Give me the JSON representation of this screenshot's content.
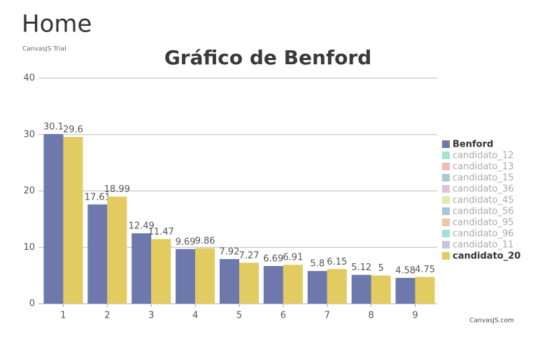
{
  "header": {
    "title": "Home",
    "trial": "CanvasJS Trial"
  },
  "chart_data": {
    "type": "bar",
    "title": "Gráfico de Benford",
    "categories": [
      "1",
      "2",
      "3",
      "4",
      "5",
      "6",
      "7",
      "8",
      "9"
    ],
    "series": [
      {
        "name": "Benford",
        "color": "#6d78ad",
        "visible": true,
        "values": [
          30.1,
          17.61,
          12.49,
          9.69,
          7.92,
          6.69,
          5.8,
          5.12,
          4.58
        ]
      },
      {
        "name": "candidato_12",
        "color": "#a3e4cc",
        "visible": false,
        "values": [
          null,
          null,
          null,
          null,
          null,
          null,
          null,
          null,
          null
        ]
      },
      {
        "name": "candidato_13",
        "color": "#f0bcb4",
        "visible": false,
        "values": [
          null,
          null,
          null,
          null,
          null,
          null,
          null,
          null,
          null
        ]
      },
      {
        "name": "candidato_15",
        "color": "#a9ccd4",
        "visible": false,
        "values": [
          null,
          null,
          null,
          null,
          null,
          null,
          null,
          null,
          null
        ]
      },
      {
        "name": "candidato_36",
        "color": "#dcc2da",
        "visible": false,
        "values": [
          null,
          null,
          null,
          null,
          null,
          null,
          null,
          null,
          null
        ]
      },
      {
        "name": "candidato_45",
        "color": "#e2e9b2",
        "visible": false,
        "values": [
          null,
          null,
          null,
          null,
          null,
          null,
          null,
          null,
          null
        ]
      },
      {
        "name": "candidato_56",
        "color": "#a8c6d8",
        "visible": false,
        "values": [
          null,
          null,
          null,
          null,
          null,
          null,
          null,
          null,
          null
        ]
      },
      {
        "name": "candidato_95",
        "color": "#f0c6a4",
        "visible": false,
        "values": [
          null,
          null,
          null,
          null,
          null,
          null,
          null,
          null,
          null
        ]
      },
      {
        "name": "candidato_96",
        "color": "#a2e2d2",
        "visible": false,
        "values": [
          null,
          null,
          null,
          null,
          null,
          null,
          null,
          null,
          null
        ]
      },
      {
        "name": "candidato_11",
        "color": "#cac2de",
        "visible": false,
        "values": [
          null,
          null,
          null,
          null,
          null,
          null,
          null,
          null,
          null
        ]
      },
      {
        "name": "candidato_20",
        "color": "#e2cb60",
        "visible": true,
        "values": [
          29.6,
          18.99,
          11.47,
          9.86,
          7.27,
          6.91,
          6.15,
          5,
          4.75
        ]
      }
    ],
    "ylim": [
      0,
      40
    ],
    "yticks": [
      0,
      10,
      20,
      30,
      40
    ],
    "grid": true,
    "legend": "right",
    "credit": "CanvasJS.com"
  }
}
